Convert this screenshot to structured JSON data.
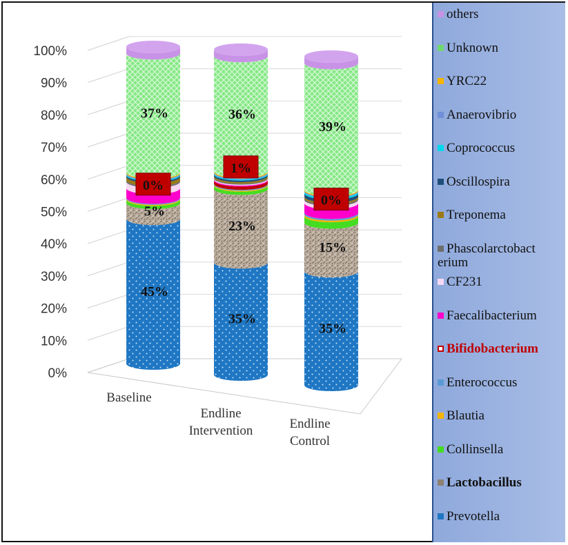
{
  "chart_data": {
    "type": "bar",
    "stacked": true,
    "style": "3d-cylinder",
    "ylim": [
      0,
      100
    ],
    "yticks": [
      "0%",
      "10%",
      "20%",
      "30%",
      "40%",
      "50%",
      "60%",
      "70%",
      "80%",
      "90%",
      "100%"
    ],
    "categories": [
      "Baseline",
      "Endline Intervention",
      "Endline Control"
    ],
    "category_lines": [
      [
        "Baseline"
      ],
      [
        "Endline",
        "Intervention"
      ],
      [
        "Endline",
        "Control"
      ]
    ],
    "grid": true,
    "legend_position": "right",
    "series": [
      {
        "name": "Prevotella",
        "color": "#1f77c4",
        "pattern": "dots",
        "values": [
          45,
          35,
          35
        ]
      },
      {
        "name": "Lactobacillus",
        "color": "#b8a898",
        "pattern": "granite",
        "bold": true,
        "values": [
          5,
          23,
          15
        ]
      },
      {
        "name": "Collinsella",
        "color": "#44dd22",
        "values": [
          1,
          1,
          2
        ]
      },
      {
        "name": "Blautia",
        "color": "#f5b400",
        "values": [
          0.3,
          0.3,
          0.5
        ]
      },
      {
        "name": "Enterococcus",
        "color": "#5b9bd5",
        "values": [
          0.3,
          0.3,
          0.5
        ]
      },
      {
        "name": "Bifidobacterium",
        "color": "#c00000",
        "highlight": true,
        "values": [
          0,
          1,
          0
        ]
      },
      {
        "name": "Faecalibacterium",
        "color": "#ff00cc",
        "values": [
          3,
          0.3,
          3
        ]
      },
      {
        "name": "CF231",
        "color": "#f6d8f2",
        "values": [
          2,
          0.3,
          1
        ]
      },
      {
        "name": "Phascolarctobacterium",
        "legend_lines": [
          "Phascolarctobact",
          "erium"
        ],
        "color": "#6e6e6e",
        "values": [
          0.5,
          0.3,
          0.5
        ]
      },
      {
        "name": "Treponema",
        "color": "#9a7a14",
        "values": [
          1,
          0.5,
          0.5
        ]
      },
      {
        "name": "Oscillospira",
        "color": "#1f4e79",
        "values": [
          0.5,
          0.5,
          1
        ]
      },
      {
        "name": "Coprococcus",
        "color": "#00d8f0",
        "values": [
          0.3,
          0.3,
          0.5
        ]
      },
      {
        "name": "Anaerovibrio",
        "color": "#6f8fd8",
        "values": [
          0.3,
          0.3,
          0.3
        ]
      },
      {
        "name": "YRC22",
        "color": "#f5b400",
        "values": [
          0.3,
          0.3,
          0.3
        ]
      },
      {
        "name": "Unknown",
        "color": "#7ee87e",
        "pattern": "crosshatch",
        "values": [
          37,
          36,
          39
        ]
      },
      {
        "name": "others",
        "color": "#c893e6",
        "values": [
          2,
          2,
          2
        ]
      }
    ],
    "data_labels": [
      {
        "series": "Prevotella",
        "values": [
          "45%",
          "35%",
          "35%"
        ]
      },
      {
        "series": "Lactobacillus",
        "values": [
          "5%",
          "23%",
          "15%"
        ]
      },
      {
        "series": "Bifidobacterium",
        "values": [
          "0%",
          "1%",
          "0%"
        ],
        "boxed": true
      },
      {
        "series": "Unknown",
        "values": [
          "37%",
          "36%",
          "39%"
        ]
      }
    ]
  }
}
